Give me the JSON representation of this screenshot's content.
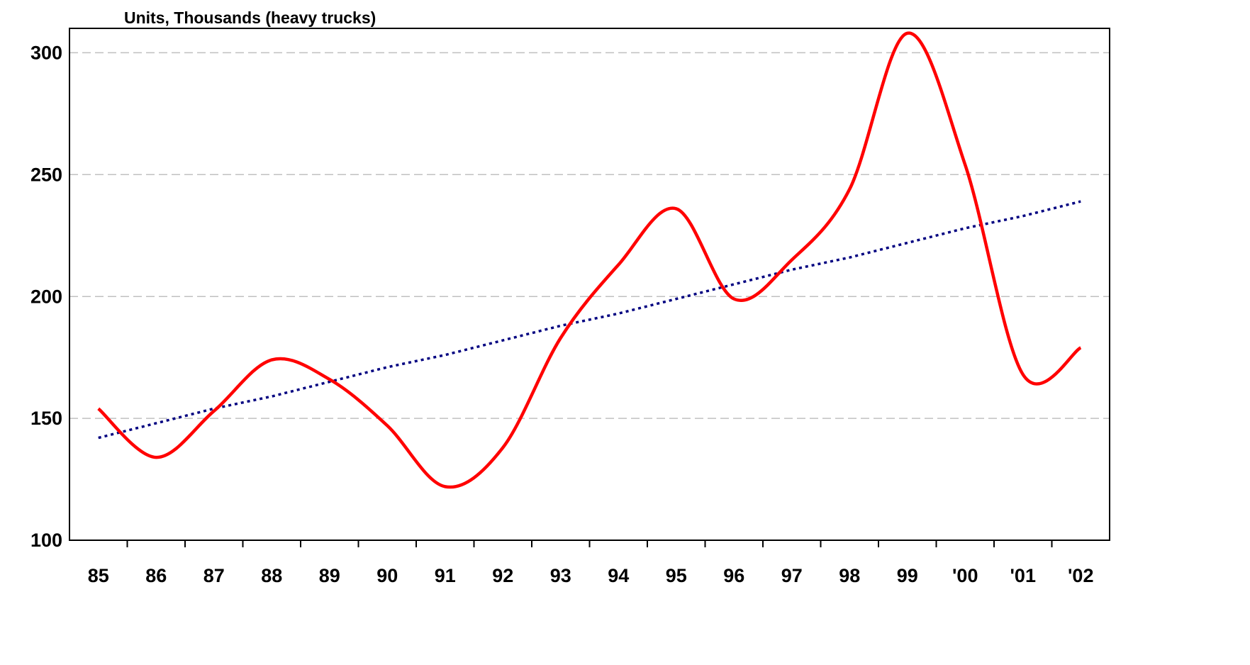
{
  "chart_data": {
    "type": "line",
    "title": "Units, Thousands (heavy trucks)",
    "categories": [
      "85",
      "86",
      "87",
      "88",
      "89",
      "90",
      "91",
      "92",
      "93",
      "94",
      "95",
      "96",
      "97",
      "98",
      "99",
      "'00",
      "'01",
      "'02"
    ],
    "series": [
      {
        "color": "#ff0000",
        "values": [
          154,
          134,
          153,
          174,
          166,
          147,
          122,
          138,
          183,
          213,
          236,
          199,
          215,
          244,
          308,
          254,
          168,
          179
        ]
      },
      {
        "color": "#000080",
        "dotted": true,
        "values": [
          142,
          148,
          154,
          159,
          165,
          171,
          176,
          182,
          188,
          193,
          199,
          205,
          211,
          216,
          222,
          228,
          233,
          239
        ]
      }
    ],
    "ylim": [
      100,
      310
    ],
    "yticks": [
      100,
      150,
      200,
      250,
      300
    ],
    "grid": true
  }
}
